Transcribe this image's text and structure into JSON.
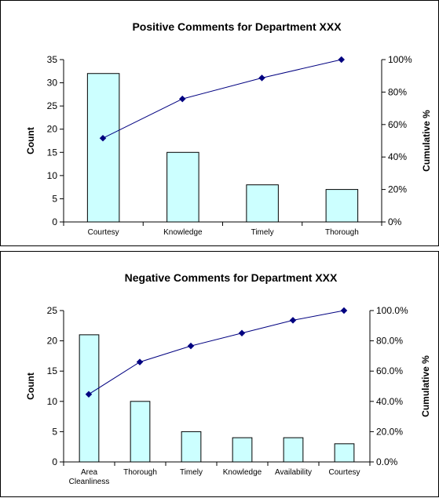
{
  "chart_data": [
    {
      "type": "bar",
      "title": "Positive Comments for Department XXX",
      "ylabel": "Count",
      "y2label": "Cumulative %",
      "ylim": [
        0,
        35
      ],
      "yticks": [
        "0",
        "5",
        "10",
        "15",
        "20",
        "25",
        "30",
        "35"
      ],
      "y2lim": [
        0,
        100
      ],
      "y2ticks": [
        "0%",
        "20%",
        "40%",
        "60%",
        "80%",
        "100%"
      ],
      "categories": [
        "Courtesy",
        "Knowledge",
        "Timely",
        "Thorough"
      ],
      "categories_lines": [
        [
          "Courtesy"
        ],
        [
          "Knowledge"
        ],
        [
          "Timely"
        ],
        [
          "Thorough"
        ]
      ],
      "series": [
        {
          "name": "Count",
          "type": "bar",
          "values": [
            32,
            15,
            8,
            7
          ]
        },
        {
          "name": "Cumulative %",
          "type": "line",
          "axis": "secondary",
          "values": [
            51.6,
            75.8,
            88.7,
            100
          ]
        }
      ],
      "grid": false,
      "colors": {
        "bar_fill": "#ccffff",
        "bar_stroke": "#000000",
        "line": "#000080"
      }
    },
    {
      "type": "bar",
      "title": "Negative Comments for Department XXX",
      "ylabel": "Count",
      "y2label": "Cumulative %",
      "ylim": [
        0,
        25
      ],
      "yticks": [
        "0",
        "5",
        "10",
        "15",
        "20",
        "25"
      ],
      "y2lim": [
        0,
        100
      ],
      "y2ticks": [
        "0.0%",
        "20.0%",
        "40.0%",
        "60.0%",
        "80.0%",
        "100.0%"
      ],
      "categories": [
        "Area Cleanliness",
        "Thorough",
        "Timely",
        "Knowledge",
        "Availability",
        "Courtesy"
      ],
      "categories_lines": [
        [
          "Area",
          "Cleanliness"
        ],
        [
          "Thorough"
        ],
        [
          "Timely"
        ],
        [
          "Knowledge"
        ],
        [
          "Availability"
        ],
        [
          "Courtesy"
        ]
      ],
      "series": [
        {
          "name": "Count",
          "type": "bar",
          "values": [
            21,
            10,
            5,
            4,
            4,
            3
          ]
        },
        {
          "name": "Cumulative %",
          "type": "line",
          "axis": "secondary",
          "values": [
            44.7,
            66.0,
            76.6,
            85.1,
            93.6,
            100
          ]
        }
      ],
      "grid": false,
      "colors": {
        "bar_fill": "#ccffff",
        "bar_stroke": "#000000",
        "line": "#000080"
      }
    }
  ]
}
